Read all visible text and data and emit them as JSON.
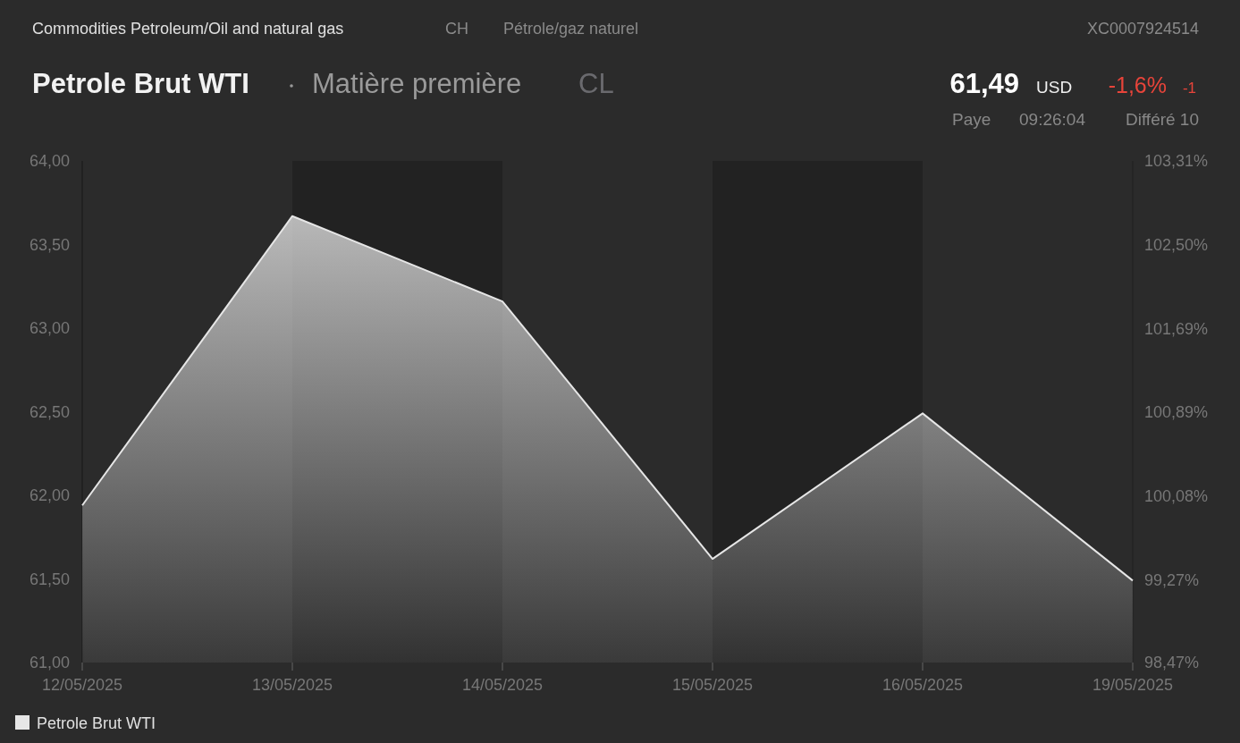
{
  "chart_data": {
    "type": "area",
    "title": "Petrole Brut WTI",
    "subtitle": "Matière première",
    "annotations": [
      "Commodities Petroleum/Oil and natural gas",
      "CH",
      "Pétrole/gaz naturel",
      "XC0007924514",
      "CL",
      "61,49",
      "USD",
      "-1,6%",
      "-1",
      "Paye",
      "09:26:04",
      "Différé 10"
    ],
    "categories": [
      "12/05/2025",
      "13/05/2025",
      "14/05/2025",
      "15/05/2025",
      "16/05/2025",
      "19/05/2025"
    ],
    "series": [
      {
        "name": "Petrole Brut WTI",
        "color": "#e6e6e6",
        "values": [
          61.94,
          63.67,
          63.16,
          61.62,
          62.49,
          61.49
        ]
      }
    ],
    "ylim": [
      61,
      64
    ],
    "yticks": [
      {
        "value": 61,
        "label": "61,00"
      },
      {
        "value": 61.5,
        "label": "61,50"
      },
      {
        "value": 62,
        "label": "62,00"
      },
      {
        "value": 62.5,
        "label": "62,50"
      },
      {
        "value": 63,
        "label": "63,00"
      },
      {
        "value": 63.5,
        "label": "63,50"
      },
      {
        "value": 64,
        "label": "64,00"
      }
    ],
    "y2lim": [
      98.47,
      103.31
    ],
    "y2ticks": [
      {
        "value": 98.47,
        "label": "98,47%"
      },
      {
        "value": 99.27,
        "label": "99,27%"
      },
      {
        "value": 100.08,
        "label": "100,08%"
      },
      {
        "value": 100.89,
        "label": "100,89%"
      },
      {
        "value": 101.69,
        "label": "101,69%"
      },
      {
        "value": 102.5,
        "label": "102,50%"
      },
      {
        "value": 103.31,
        "label": "103,31%"
      }
    ],
    "bands": [
      {
        "axis": "x",
        "from": "13/05/2025",
        "to": "14/05/2025",
        "color": "#222222"
      },
      {
        "axis": "x",
        "from": "15/05/2025",
        "to": "16/05/2025",
        "color": "#222222"
      }
    ],
    "legend": "bottom left"
  }
}
